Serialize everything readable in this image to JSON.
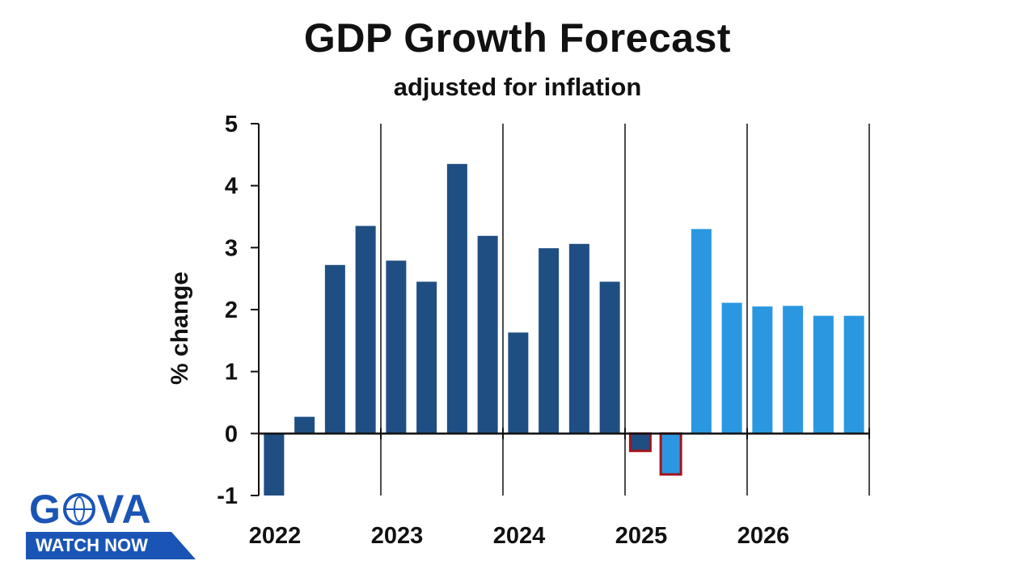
{
  "chart_data": {
    "type": "bar",
    "title": "GDP Growth Forecast",
    "subtitle": "adjusted for inflation",
    "ylabel": "% change",
    "xlabel": "",
    "ylim": [
      -1,
      5
    ],
    "yticks": [
      -1,
      0,
      1,
      2,
      3,
      4,
      5
    ],
    "year_labels": [
      "2022",
      "2023",
      "2024",
      "2025",
      "2026"
    ],
    "grid": "vertical lines at year boundaries",
    "series": [
      {
        "values": [
          -1.0,
          0.27,
          2.72,
          3.35,
          2.79,
          2.45,
          4.35,
          3.19,
          1.63,
          2.99,
          3.06,
          2.45,
          -0.28,
          -0.66,
          3.3,
          2.11,
          2.05,
          2.06,
          1.9,
          1.9
        ]
      }
    ],
    "bar_types": [
      "actual",
      "actual",
      "actual",
      "actual",
      "actual",
      "actual",
      "actual",
      "actual",
      "actual",
      "actual",
      "actual",
      "actual",
      "negative-actual",
      "negative-forecast",
      "forecast",
      "forecast",
      "forecast",
      "forecast",
      "forecast",
      "forecast"
    ],
    "colors": {
      "actual": "#1f4e82",
      "forecast": "#2a97e0",
      "negative_outline": "#a3141b",
      "axis": "#111111"
    }
  },
  "logo": {
    "word": [
      "G",
      "VA"
    ],
    "tagline": "WATCH NOW",
    "color": "#1a55b5"
  }
}
